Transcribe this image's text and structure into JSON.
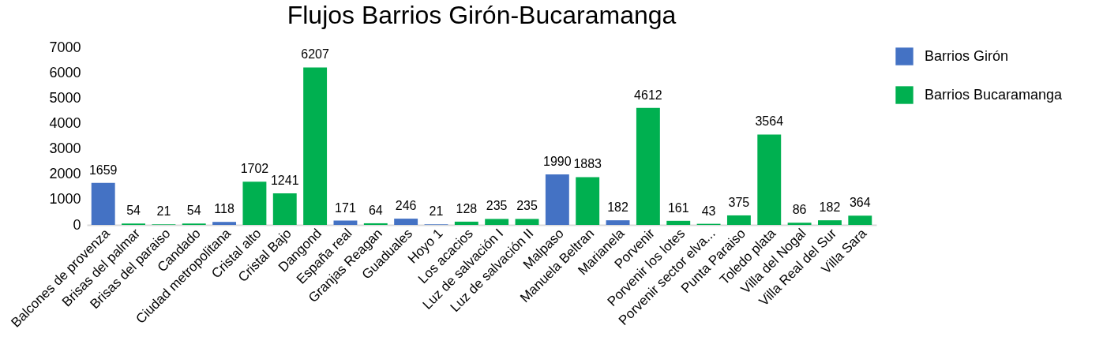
{
  "chart_data": {
    "type": "bar",
    "title": "Flujos Barrios Girón-Bucaramanga",
    "categories": [
      "Balcones de provenza",
      "Brisas del palmar",
      "Brisas del paraiso",
      "Candado",
      "Ciudad metropolitana",
      "Cristal alto",
      "Cristal Bajo",
      "Dangond",
      "España real",
      "Granjas Reagan",
      "Guaduales",
      "Hoyo 1",
      "Los acacios",
      "Luz de salvación I",
      "Luz de salvación II",
      "Malpaso",
      "Manuela Beltran",
      "Marianela",
      "Porvenir",
      "Porvenir los lotes",
      "Porvenir sector elva...",
      "Punta Paraiso",
      "Toledo plata",
      "Villa del Nogal",
      "Villa Real del Sur",
      "Villa Sara"
    ],
    "series": [
      {
        "name": "Barrios Girón",
        "color": "#4472c4",
        "values": [
          1659,
          null,
          null,
          null,
          118,
          null,
          null,
          null,
          171,
          null,
          246,
          21,
          null,
          null,
          null,
          1990,
          null,
          182,
          null,
          null,
          null,
          null,
          null,
          null,
          null,
          null
        ]
      },
      {
        "name": "Barrios Bucaramanga",
        "color": "#00b050",
        "values": [
          null,
          54,
          21,
          54,
          null,
          1702,
          1241,
          6207,
          null,
          64,
          null,
          null,
          128,
          235,
          235,
          null,
          1883,
          null,
          4612,
          161,
          43,
          375,
          3564,
          86,
          182,
          364
        ]
      }
    ],
    "stacked": true,
    "ylim": [
      0,
      7000
    ],
    "yticks": [
      0,
      1000,
      2000,
      3000,
      4000,
      5000,
      6000,
      7000
    ],
    "data_labels": true,
    "legend": "top right"
  }
}
